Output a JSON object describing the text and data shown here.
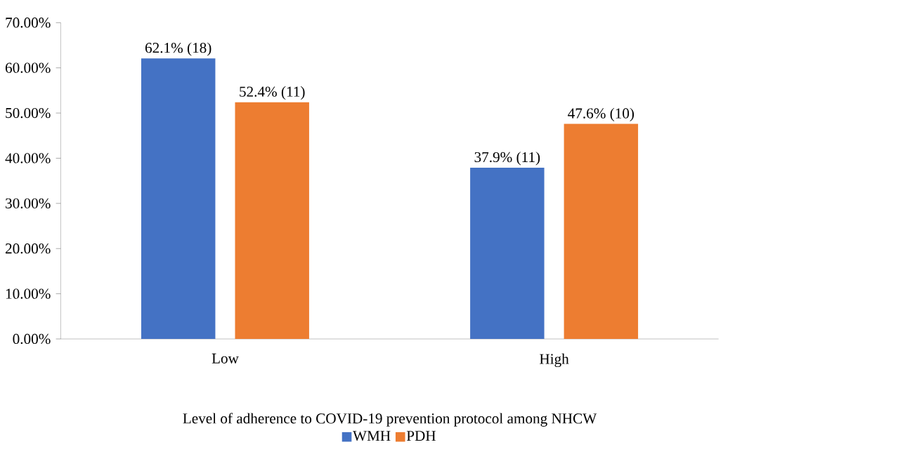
{
  "chart_data": {
    "type": "bar",
    "xlabel": "Level of adherence to COVID-19 prevention protocol among NHCW",
    "categories": [
      "Low",
      "High"
    ],
    "series": [
      {
        "name": "WMH",
        "color": "#4472c4",
        "values": [
          62.1,
          37.9
        ],
        "value_labels": [
          "62.1% (18)",
          "37.9% (11)"
        ]
      },
      {
        "name": "PDH",
        "color": "#ed7d31",
        "values": [
          52.4,
          47.6
        ],
        "value_labels": [
          "52.4% (11)",
          "47.6% (10)"
        ]
      }
    ],
    "ylim": [
      0,
      70
    ],
    "yticks": [
      {
        "value": 0,
        "label": "0.00%"
      },
      {
        "value": 10,
        "label": "10.00%"
      },
      {
        "value": 20,
        "label": "20.00%"
      },
      {
        "value": 30,
        "label": "30.00%"
      },
      {
        "value": 40,
        "label": "40.00%"
      },
      {
        "value": 50,
        "label": "50.00%"
      },
      {
        "value": 60,
        "label": "60.00%"
      },
      {
        "value": 70,
        "label": "70.00%"
      }
    ],
    "legend": "bottom"
  }
}
